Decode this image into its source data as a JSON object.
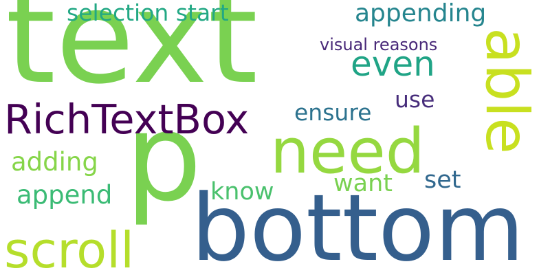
{
  "words": {
    "text": {
      "label": "text",
      "color": "#7ad151"
    },
    "p": {
      "label": "p",
      "color": "#7ad151"
    },
    "bottom": {
      "label": "bottom",
      "color": "#355f8d"
    },
    "need": {
      "label": "need",
      "color": "#95d840"
    },
    "able": {
      "label": "able",
      "color": "#c8e020"
    },
    "richtextbox": {
      "label": "RichTextBox",
      "color": "#440154"
    },
    "scroll": {
      "label": "scroll",
      "color": "#b5de2b"
    },
    "even": {
      "label": "even",
      "color": "#20a486"
    },
    "selection_start": {
      "label": "selection start",
      "color": "#22a884"
    },
    "appending": {
      "label": "appending",
      "color": "#25858e"
    },
    "visual_reasons": {
      "label": "visual reasons",
      "color": "#482878"
    },
    "use": {
      "label": "use",
      "color": "#472d7b"
    },
    "ensure": {
      "label": "ensure",
      "color": "#2c728e"
    },
    "adding": {
      "label": "adding",
      "color": "#86d549"
    },
    "want": {
      "label": "want",
      "color": "#7ad151"
    },
    "set": {
      "label": "set",
      "color": "#31688e"
    },
    "know": {
      "label": "know",
      "color": "#4ac16d"
    },
    "append": {
      "label": "append",
      "color": "#3bbb75"
    }
  }
}
